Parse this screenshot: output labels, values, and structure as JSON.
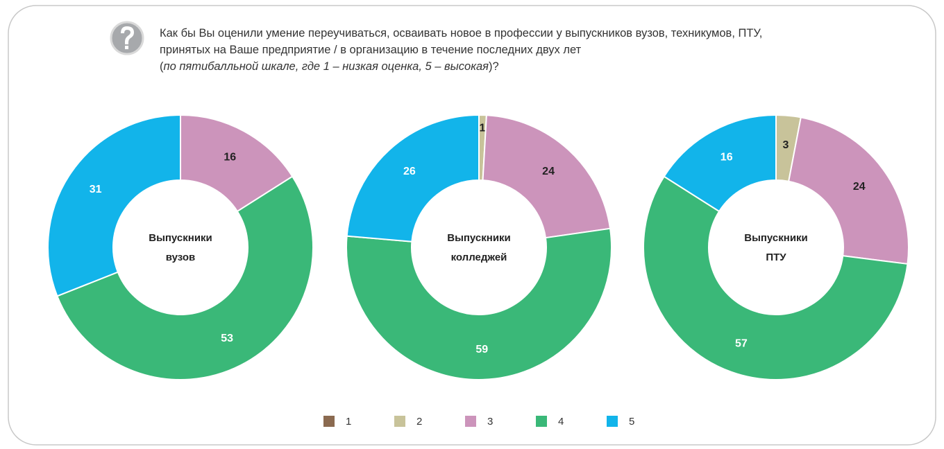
{
  "question": {
    "text": "Как бы Вы оценили умение переучиваться, осваивать новое в профессии у выпускников вузов, техникумов, ПТУ, принятых на Ваше предприятие / в организацию в течение последних двух лет",
    "open": "(",
    "note": "по пятибалльной шкале, где 1 – низкая оценка, 5 – высокая",
    "close": ")?"
  },
  "legend": {
    "categories": [
      "1",
      "2",
      "3",
      "4",
      "5"
    ],
    "colors": [
      "#8b6a50",
      "#c8c39a",
      "#cc94bb",
      "#3ab878",
      "#12b4ea"
    ]
  },
  "chart_data": [
    {
      "type": "pie",
      "donut": true,
      "label": [
        "Выпускники",
        "вузов"
      ],
      "values": [
        null,
        null,
        16,
        53,
        31
      ]
    },
    {
      "type": "pie",
      "donut": true,
      "label": [
        "Выпускники",
        "колледжей"
      ],
      "values": [
        null,
        1,
        24,
        59,
        26
      ]
    },
    {
      "type": "pie",
      "donut": true,
      "label": [
        "Выпускники",
        "ПТУ"
      ],
      "values": [
        null,
        3,
        24,
        57,
        16
      ]
    }
  ]
}
